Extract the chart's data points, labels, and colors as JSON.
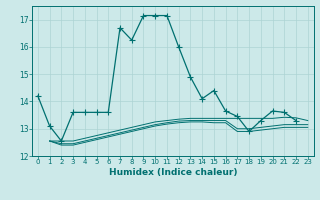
{
  "xlabel": "Humidex (Indice chaleur)",
  "background_color": "#cce9e9",
  "grid_color": "#add4d4",
  "line_color": "#007070",
  "xlim": [
    -0.5,
    23.5
  ],
  "ylim": [
    12,
    17.5
  ],
  "yticks": [
    12,
    13,
    14,
    15,
    16,
    17
  ],
  "xticks": [
    0,
    1,
    2,
    3,
    4,
    5,
    6,
    7,
    8,
    9,
    10,
    11,
    12,
    13,
    14,
    15,
    16,
    17,
    18,
    19,
    20,
    21,
    22,
    23
  ],
  "series1_x": [
    0,
    1,
    2,
    3,
    4,
    5,
    6,
    7,
    8,
    9,
    10,
    11,
    12,
    13,
    14,
    15,
    16,
    17,
    18,
    19,
    20,
    21,
    22
  ],
  "series1_y": [
    14.2,
    13.1,
    12.55,
    13.6,
    13.6,
    13.6,
    13.6,
    16.7,
    16.25,
    17.15,
    17.15,
    17.15,
    16.0,
    14.9,
    14.1,
    14.4,
    13.65,
    13.45,
    12.9,
    13.3,
    13.65,
    13.6,
    13.3
  ],
  "series2_x": [
    1,
    2,
    3,
    4,
    5,
    6,
    7,
    8,
    9,
    10,
    11,
    12,
    13,
    14,
    15,
    16,
    17,
    18,
    19,
    20,
    21,
    22,
    23
  ],
  "series2_y": [
    12.55,
    12.55,
    12.55,
    12.65,
    12.75,
    12.85,
    12.95,
    13.05,
    13.15,
    13.25,
    13.3,
    13.35,
    13.38,
    13.38,
    13.38,
    13.38,
    13.38,
    13.38,
    13.38,
    13.38,
    13.42,
    13.4,
    13.3
  ],
  "series3_x": [
    1,
    2,
    3,
    4,
    5,
    6,
    7,
    8,
    9,
    10,
    11,
    12,
    13,
    14,
    15,
    16,
    17,
    18,
    19,
    20,
    21,
    22,
    23
  ],
  "series3_y": [
    12.55,
    12.45,
    12.45,
    12.55,
    12.65,
    12.75,
    12.85,
    12.95,
    13.05,
    13.15,
    13.22,
    13.28,
    13.3,
    13.3,
    13.3,
    13.3,
    13.0,
    13.0,
    13.05,
    13.1,
    13.15,
    13.15,
    13.15
  ],
  "series4_x": [
    1,
    2,
    3,
    4,
    5,
    6,
    7,
    8,
    9,
    10,
    11,
    12,
    13,
    14,
    15,
    16,
    17,
    18,
    19,
    20,
    21,
    22,
    23
  ],
  "series4_y": [
    12.55,
    12.4,
    12.4,
    12.5,
    12.6,
    12.7,
    12.8,
    12.9,
    13.0,
    13.1,
    13.17,
    13.22,
    13.25,
    13.25,
    13.22,
    13.22,
    12.9,
    12.9,
    12.95,
    13.0,
    13.05,
    13.05,
    13.05
  ]
}
